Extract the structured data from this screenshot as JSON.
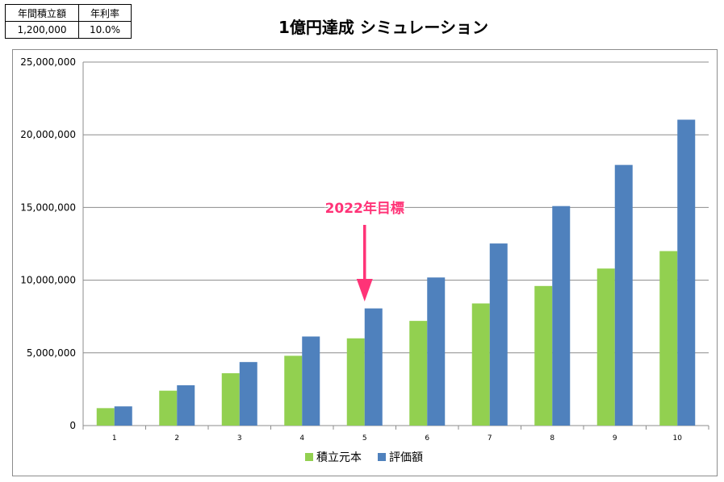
{
  "params": {
    "headers": [
      "年間積立額",
      "年利率"
    ],
    "values": [
      "1,200,000",
      "10.0%"
    ]
  },
  "chart_data": {
    "type": "bar",
    "title": "1億円達成 シミュレーション",
    "categories": [
      "1",
      "2",
      "3",
      "4",
      "5",
      "6",
      "7",
      "8",
      "9",
      "10"
    ],
    "series": [
      {
        "name": "積立元本",
        "color": "#92d050",
        "values": [
          1200000,
          2400000,
          3600000,
          4800000,
          6000000,
          7200000,
          8400000,
          9600000,
          10800000,
          12000000
        ]
      },
      {
        "name": "評価額",
        "color": "#4f81bd",
        "values": [
          1320000,
          2772000,
          4369200,
          6126120,
          8058732,
          10184605,
          12523066,
          15095372,
          17924909,
          21037400
        ]
      }
    ],
    "ylim": [
      0,
      25000000
    ],
    "yticks": [
      "0",
      "5,000,000",
      "10,000,000",
      "15,000,000",
      "20,000,000",
      "25,000,000"
    ],
    "grid": true,
    "legend_position": "bottom",
    "annotation": {
      "text": "2022年目標",
      "category": "5",
      "color": "#ff3377"
    }
  }
}
